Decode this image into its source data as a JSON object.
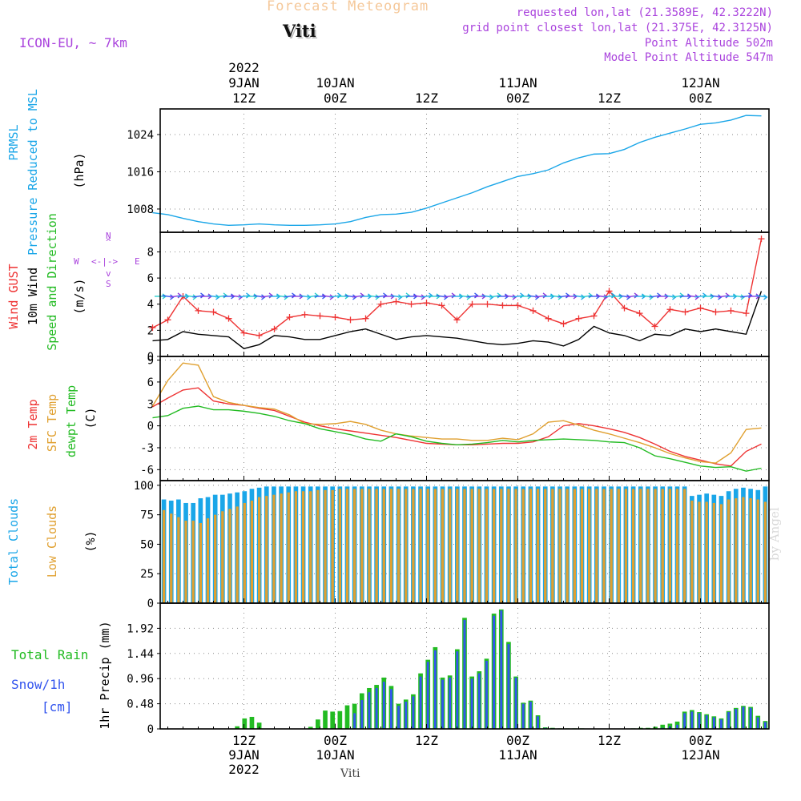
{
  "header": {
    "title": "Forecast Meteogram",
    "location": "Viti",
    "model": "ICON-EU, ~ 7km",
    "requested": "requested lon,lat (21.3589E, 42.3222N)",
    "grid_point": "grid point closest lon,lat (21.375E, 42.3125N)",
    "point_altitude": "Point Altitude 502m",
    "model_altitude": "Model Point Altitude 547m"
  },
  "footer": {
    "location": "Viti",
    "watermark": "by Angel"
  },
  "time_axis": {
    "top": [
      {
        "t": 12,
        "lines": [
          "2022",
          "9JAN",
          "12Z"
        ]
      },
      {
        "t": 24,
        "lines": [
          "10JAN",
          "00Z"
        ]
      },
      {
        "t": 36,
        "lines": [
          "12Z"
        ]
      },
      {
        "t": 48,
        "lines": [
          "11JAN",
          "00Z"
        ]
      },
      {
        "t": 60,
        "lines": [
          "12Z"
        ]
      },
      {
        "t": 72,
        "lines": [
          "12JAN",
          "00Z"
        ]
      }
    ],
    "bottom": [
      {
        "t": 12,
        "lines": [
          "12Z",
          "9JAN",
          "2022"
        ]
      },
      {
        "t": 24,
        "lines": [
          "00Z",
          "10JAN"
        ]
      },
      {
        "t": 36,
        "lines": [
          "12Z"
        ]
      },
      {
        "t": 48,
        "lines": [
          "00Z",
          "11JAN"
        ]
      },
      {
        "t": 60,
        "lines": [
          "12Z"
        ]
      },
      {
        "t": 72,
        "lines": [
          "00Z",
          "12JAN"
        ]
      }
    ]
  },
  "panels": {
    "pressure": {
      "labels": [
        {
          "text": "PRMSL",
          "color": "#1aa6e8"
        },
        {
          "text": "Pressure Reduced to MSL",
          "color": "#1aa6e8"
        },
        {
          "text": "(hPa)",
          "color": "#000000"
        }
      ]
    },
    "wind": {
      "labels": [
        {
          "text": "Wind GUST",
          "color": "#ee3333"
        },
        {
          "text": "10m Wind",
          "color": "#000000"
        },
        {
          "text": "Speed and Direction",
          "color": "#22bb22"
        },
        {
          "text": "(m/s)",
          "color": "#000000"
        }
      ],
      "compass": {
        "n": "N",
        "s": "S",
        "w": "W",
        "e": "E",
        "row": "<-|->",
        "up": "^",
        "down": "v",
        "color": "#aa44dd"
      }
    },
    "temperature": {
      "labels": [
        {
          "text": "2m Temp",
          "color": "#ee3333"
        },
        {
          "text": "SFC Temp",
          "color": "#e0a030"
        },
        {
          "text": "dewpt Temp",
          "color": "#22bb22"
        },
        {
          "text": "(C)",
          "color": "#000000"
        }
      ]
    },
    "clouds": {
      "labels": [
        {
          "text": "Total Clouds",
          "color": "#1aa6e8"
        },
        {
          "text": "Low Clouds",
          "color": "#e0a030"
        },
        {
          "text": "(%)",
          "color": "#000000"
        }
      ]
    },
    "precip": {
      "labels": [
        {
          "text": "Total  Rain",
          "color": "#22bb22"
        },
        {
          "text": "Snow/1h",
          "color": "#3355ee"
        },
        {
          "text": "[cm]",
          "color": "#3355ee"
        },
        {
          "text": "1hr Precip (mm)",
          "color": "#000000"
        }
      ]
    }
  },
  "chart_data": [
    {
      "type": "line",
      "ylabel": "(hPa)",
      "ylim": [
        1003,
        1029.5
      ],
      "yticks": [
        1008,
        1016,
        1024
      ],
      "grid": true,
      "x_hours": [
        0,
        2,
        4,
        6,
        8,
        10,
        12,
        14,
        16,
        18,
        20,
        22,
        24,
        26,
        28,
        30,
        32,
        34,
        36,
        38,
        40,
        42,
        44,
        46,
        48,
        50,
        52,
        54,
        56,
        58,
        60,
        62,
        64,
        66,
        68,
        70,
        72,
        74,
        76,
        78,
        80
      ],
      "series": [
        {
          "name": "PRMSL",
          "color": "#1aa6e8",
          "values": [
            1007.2,
            1006.8,
            1006.0,
            1005.3,
            1004.8,
            1004.5,
            1004.6,
            1004.8,
            1004.6,
            1004.5,
            1004.5,
            1004.6,
            1004.8,
            1005.3,
            1006.2,
            1006.8,
            1006.9,
            1007.3,
            1008.2,
            1009.3,
            1010.4,
            1011.5,
            1012.8,
            1013.9,
            1015.0,
            1015.6,
            1016.4,
            1017.9,
            1019.0,
            1019.8,
            1019.9,
            1020.8,
            1022.3,
            1023.4,
            1024.3,
            1025.2,
            1026.2,
            1026.5,
            1027.1,
            1028.1,
            1028.0
          ]
        }
      ]
    },
    {
      "type": "line",
      "ylabel": "(m/s)",
      "ylim": [
        0,
        9.5
      ],
      "yticks": [
        0,
        2,
        4,
        6,
        8
      ],
      "grid": true,
      "x_hours": [
        0,
        2,
        4,
        6,
        8,
        10,
        12,
        14,
        16,
        18,
        20,
        22,
        24,
        26,
        28,
        30,
        32,
        34,
        36,
        38,
        40,
        42,
        44,
        46,
        48,
        50,
        52,
        54,
        56,
        58,
        60,
        62,
        64,
        66,
        68,
        70,
        72,
        74,
        76,
        78,
        80
      ],
      "series": [
        {
          "name": "Wind GUST",
          "color": "#ee3333",
          "marker": "+",
          "values": [
            2.2,
            2.8,
            4.6,
            3.5,
            3.4,
            2.9,
            1.8,
            1.6,
            2.1,
            3.0,
            3.2,
            3.1,
            3.0,
            2.8,
            2.9,
            4.0,
            4.2,
            4.0,
            4.1,
            3.9,
            2.8,
            4.0,
            4.0,
            3.9,
            3.9,
            3.5,
            2.9,
            2.5,
            2.9,
            3.1,
            5.0,
            3.7,
            3.3,
            2.3,
            3.6,
            3.4,
            3.7,
            3.4,
            3.5,
            3.3,
            9.0
          ]
        },
        {
          "name": "10m Wind",
          "color": "#000000",
          "values": [
            1.2,
            1.3,
            1.9,
            1.7,
            1.6,
            1.5,
            0.6,
            0.9,
            1.6,
            1.5,
            1.3,
            1.3,
            1.6,
            1.9,
            2.1,
            1.7,
            1.3,
            1.5,
            1.6,
            1.5,
            1.4,
            1.2,
            1.0,
            0.9,
            1.0,
            1.2,
            1.1,
            0.8,
            1.3,
            2.3,
            1.8,
            1.6,
            1.2,
            1.7,
            1.6,
            2.1,
            1.9,
            2.1,
            1.9,
            1.7,
            5.0
          ]
        }
      ],
      "wind_barbs": {
        "row_value": 4.6,
        "colors": [
          "#1aa6e8",
          "#22cccc",
          "#3355ee",
          "#8833dd"
        ]
      }
    },
    {
      "type": "line",
      "ylabel": "(C)",
      "ylim": [
        -7.5,
        9.5
      ],
      "yticks": [
        -6,
        -3,
        0,
        3,
        6,
        9
      ],
      "grid": true,
      "x_hours": [
        0,
        2,
        4,
        6,
        8,
        10,
        12,
        14,
        16,
        18,
        20,
        22,
        24,
        26,
        28,
        30,
        32,
        34,
        36,
        38,
        40,
        42,
        44,
        46,
        48,
        50,
        52,
        54,
        56,
        58,
        60,
        62,
        64,
        66,
        68,
        70,
        72,
        74,
        76,
        78,
        80
      ],
      "series": [
        {
          "name": "2m Temp",
          "color": "#ee3333",
          "values": [
            2.6,
            3.8,
            4.9,
            5.2,
            3.4,
            3.0,
            2.8,
            2.4,
            2.1,
            1.3,
            0.5,
            0.0,
            -0.4,
            -0.7,
            -1.0,
            -1.3,
            -1.6,
            -2.0,
            -2.4,
            -2.5,
            -2.6,
            -2.6,
            -2.5,
            -2.4,
            -2.4,
            -2.2,
            -1.5,
            0.0,
            0.3,
            0.0,
            -0.4,
            -0.9,
            -1.6,
            -2.5,
            -3.5,
            -4.2,
            -4.7,
            -5.2,
            -5.5,
            -3.5,
            -2.5
          ]
        },
        {
          "name": "SFC Temp",
          "color": "#e0a030",
          "values": [
            2.7,
            6.2,
            8.6,
            8.3,
            4.0,
            3.2,
            2.8,
            2.5,
            2.3,
            1.5,
            0.3,
            0.2,
            0.3,
            0.6,
            0.2,
            -0.6,
            -1.1,
            -1.4,
            -1.6,
            -1.8,
            -1.8,
            -2.0,
            -2.0,
            -1.7,
            -1.9,
            -1.1,
            0.5,
            0.7,
            0.1,
            -0.6,
            -1.1,
            -1.7,
            -2.3,
            -3.0,
            -3.8,
            -4.4,
            -4.9,
            -5.1,
            -3.7,
            -0.5,
            -0.3
          ]
        },
        {
          "name": "dewpt Temp",
          "color": "#22bb22",
          "values": [
            1.1,
            1.4,
            2.4,
            2.7,
            2.2,
            2.2,
            2.0,
            1.7,
            1.3,
            0.7,
            0.3,
            -0.4,
            -0.8,
            -1.2,
            -1.8,
            -2.1,
            -1.1,
            -1.5,
            -2.1,
            -2.4,
            -2.6,
            -2.5,
            -2.3,
            -2.0,
            -2.2,
            -2.0,
            -1.9,
            -1.8,
            -1.9,
            -2.0,
            -2.2,
            -2.3,
            -3.0,
            -4.1,
            -4.5,
            -5.0,
            -5.5,
            -5.7,
            -5.6,
            -6.2,
            -5.8
          ]
        }
      ]
    },
    {
      "type": "bar",
      "ylabel": "(%)",
      "ylim": [
        0,
        104
      ],
      "yticks": [
        0,
        25,
        50,
        75,
        100
      ],
      "grid": true,
      "series": [
        {
          "name": "Total Clouds",
          "color": "#1aa6e8",
          "values": [
            88,
            87,
            88,
            85,
            85,
            89,
            90,
            92,
            92,
            93,
            94,
            95,
            97,
            98,
            99,
            99,
            99,
            99,
            99,
            99,
            99,
            99,
            99,
            99,
            99,
            99,
            99,
            99,
            99,
            99,
            99,
            99,
            99,
            99,
            99,
            99,
            99,
            99,
            99,
            99,
            99,
            99,
            99,
            99,
            99,
            99,
            99,
            99,
            99,
            99,
            99,
            99,
            99,
            99,
            99,
            99,
            99,
            99,
            99,
            99,
            99,
            99,
            99,
            99,
            99,
            99,
            99,
            99,
            99,
            99,
            99,
            99,
            91,
            92,
            93,
            92,
            91,
            95,
            97,
            98,
            97,
            96,
            99
          ]
        },
        {
          "name": "Low Clouds",
          "color": "#e0a030",
          "values": [
            79,
            76,
            73,
            70,
            70,
            68,
            72,
            75,
            78,
            80,
            82,
            85,
            87,
            90,
            91,
            92,
            93,
            94,
            95,
            95,
            95,
            96,
            96,
            96,
            97,
            97,
            97,
            97,
            97,
            97,
            97,
            97,
            97,
            97,
            97,
            97,
            97,
            97,
            97,
            97,
            97,
            97,
            97,
            97,
            97,
            97,
            97,
            97,
            97,
            97,
            97,
            97,
            97,
            97,
            97,
            97,
            97,
            97,
            97,
            97,
            97,
            97,
            97,
            97,
            97,
            97,
            97,
            97,
            97,
            97,
            97,
            97,
            87,
            86,
            86,
            85,
            84,
            88,
            89,
            90,
            89,
            88,
            86
          ]
        }
      ]
    },
    {
      "type": "bar",
      "ylabel": "1hr Precip (mm)",
      "ylim": [
        0,
        2.4
      ],
      "yticks": [
        0,
        0.48,
        0.96,
        1.44,
        1.92
      ],
      "grid": true,
      "series": [
        {
          "name": "Total Rain",
          "color": "#22bb22",
          "values": [
            0,
            0,
            0,
            0,
            0,
            0,
            0,
            0,
            0,
            0,
            0.05,
            0.2,
            0.23,
            0.12,
            0,
            0,
            0,
            0,
            0,
            0,
            0.04,
            0.18,
            0.35,
            0.33,
            0.34,
            0.45,
            0.48,
            0.68,
            0.78,
            0.84,
            0.98,
            0.82,
            0.48,
            0.56,
            0.66,
            1.06,
            1.32,
            1.56,
            0.98,
            1.02,
            1.52,
            2.12,
            1.0,
            1.1,
            1.34,
            2.2,
            2.28,
            1.66,
            1.0,
            0.5,
            0.54,
            0.26,
            0.03,
            0.02,
            0.01,
            0.01,
            0.01,
            0.01,
            0,
            0,
            0,
            0,
            0,
            0,
            0.01,
            0.02,
            0.02,
            0.04,
            0.08,
            0.1,
            0.14,
            0.33,
            0.36,
            0.32,
            0.28,
            0.24,
            0.2,
            0.34,
            0.4,
            0.44,
            0.42,
            0.25,
            0.15
          ]
        },
        {
          "name": "Snow/1h",
          "color": "#3355ee",
          "values": [
            0,
            0,
            0,
            0,
            0,
            0,
            0,
            0,
            0,
            0,
            0,
            0,
            0,
            0,
            0,
            0,
            0,
            0,
            0,
            0,
            0,
            0,
            0,
            0,
            0,
            0,
            0.3,
            0.55,
            0.7,
            0.78,
            0.9,
            0.76,
            0.44,
            0.52,
            0.62,
            1.0,
            1.28,
            1.5,
            0.94,
            0.98,
            1.48,
            2.08,
            0.96,
            1.06,
            1.3,
            2.16,
            2.26,
            1.62,
            0.98,
            0.48,
            0.52,
            0.24,
            0.02,
            0.01,
            0,
            0,
            0,
            0,
            0,
            0,
            0,
            0,
            0,
            0,
            0,
            0,
            0,
            0,
            0.02,
            0.05,
            0.08,
            0.3,
            0.33,
            0.3,
            0.26,
            0.22,
            0.18,
            0.32,
            0.38,
            0.42,
            0.4,
            0.22,
            0.13
          ]
        }
      ]
    }
  ]
}
